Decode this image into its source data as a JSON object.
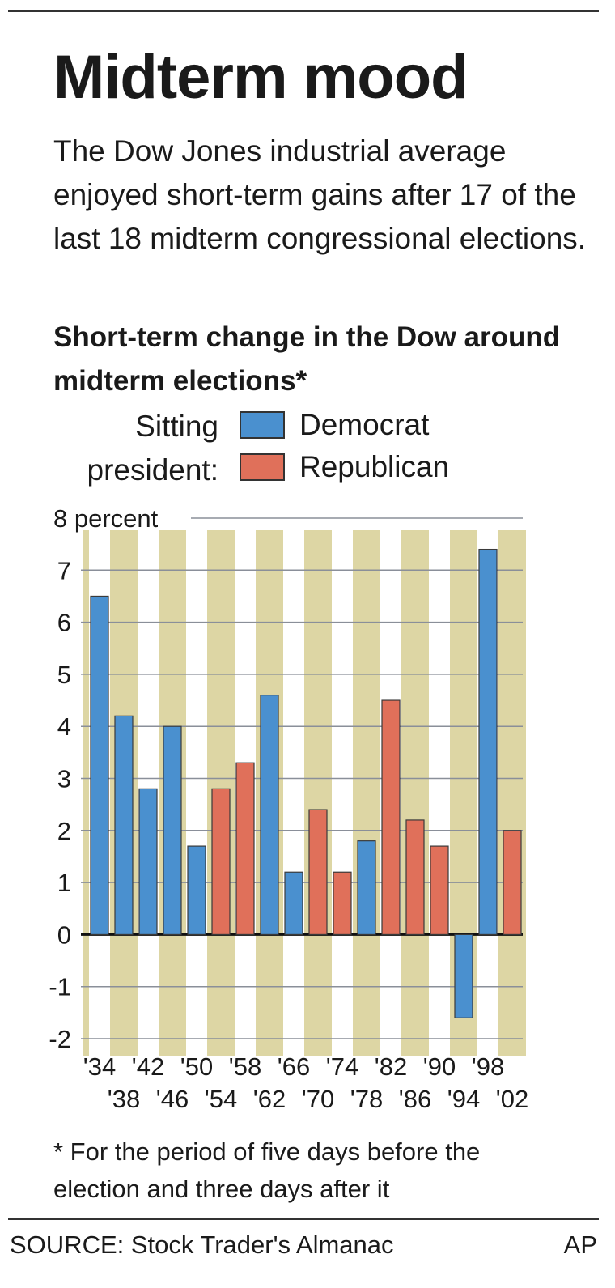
{
  "title": "Midterm mood",
  "dek": "The Dow Jones industrial average enjoyed short-term gains after 17 of the last 18 midterm congressional elections.",
  "chart_data": {
    "type": "bar",
    "title": "Short-term change in the Dow around midterm elections*",
    "ylabel": "8 percent",
    "ylim": [
      -2,
      8
    ],
    "yticks": [
      "8 percent",
      "7",
      "6",
      "5",
      "4",
      "3",
      "2",
      "1",
      "0",
      "-1",
      "-2"
    ],
    "legend": {
      "title": "Sitting president:",
      "title_lines": [
        "Sitting",
        "president:"
      ],
      "items": [
        {
          "label": "Democrat",
          "color": "#4a90cf"
        },
        {
          "label": "Republican",
          "color": "#e0705a"
        }
      ]
    },
    "categories": [
      "'34",
      "'38",
      "'42",
      "'46",
      "'50",
      "'54",
      "'58",
      "'62",
      "'66",
      "'70",
      "'74",
      "'78",
      "'82",
      "'86",
      "'90",
      "'94",
      "'98",
      "'02"
    ],
    "values": [
      6.5,
      4.2,
      2.8,
      4.0,
      1.7,
      2.8,
      3.3,
      4.6,
      1.2,
      2.4,
      1.2,
      1.8,
      4.5,
      2.2,
      1.7,
      -1.6,
      7.4,
      2.0
    ],
    "party": [
      "Democrat",
      "Democrat",
      "Democrat",
      "Democrat",
      "Democrat",
      "Republican",
      "Republican",
      "Democrat",
      "Democrat",
      "Republican",
      "Republican",
      "Democrat",
      "Republican",
      "Republican",
      "Republican",
      "Democrat",
      "Democrat",
      "Republican"
    ],
    "grid": true,
    "stripe_color": "#ddd6a4",
    "footnote": "* For the period of five days before the election and three days after it"
  },
  "source": "SOURCE: Stock Trader's Almanac",
  "credit": "AP"
}
